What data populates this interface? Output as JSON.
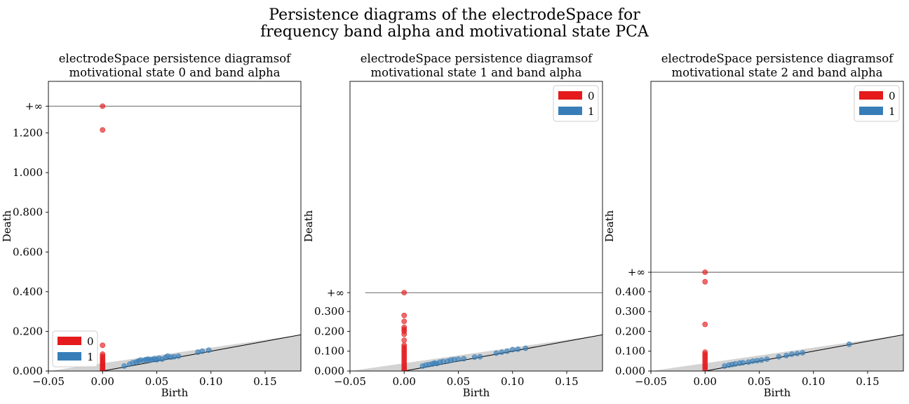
{
  "suptitle": {
    "line1": "Persistence diagrams of the electrodeSpace for",
    "line2": "frequency band alpha and motivational state PCA"
  },
  "colors": {
    "h0": "#e41a1c",
    "h1": "#377eb8",
    "diag_fill": "#d3d3d3"
  },
  "chart_data": [
    {
      "type": "scatter",
      "title_line1": "electrodeSpace persistence diagramsof",
      "title_line2": "motivational state 0 and band alpha",
      "xlabel": "Birth",
      "ylabel": "Death",
      "xlim": [
        -0.05,
        0.183
      ],
      "ylim": [
        0,
        1.46
      ],
      "xticks": [
        -0.05,
        0.0,
        0.05,
        0.1,
        0.15
      ],
      "xtick_labels": [
        "−0.05",
        "0.00",
        "0.05",
        "0.10",
        "0.15"
      ],
      "yticks": [
        0,
        0.2,
        0.4,
        0.6,
        0.8,
        1.0,
        1.2
      ],
      "ytick_labels": [
        "0.000",
        "0.200",
        "0.400",
        "0.600",
        "0.800",
        "1.000",
        "1.200"
      ],
      "inf_value": 1.335,
      "inf_label": "+∞",
      "inf_line_start": -0.05,
      "legend_loc": "lower left",
      "series": [
        {
          "name": "0",
          "points": [
            [
              0,
              1.335
            ],
            [
              0,
              1.215
            ],
            [
              0,
              0.13
            ],
            [
              0,
              0.085
            ],
            [
              0,
              0.075
            ],
            [
              0,
              0.066
            ],
            [
              0,
              0.058
            ],
            [
              0,
              0.05
            ],
            [
              0,
              0.043
            ],
            [
              0,
              0.036
            ],
            [
              0,
              0.03
            ],
            [
              0,
              0.024
            ],
            [
              0,
              0.018
            ],
            [
              0,
              0.012
            ],
            [
              0,
              0.006
            ],
            [
              0,
              0.002
            ]
          ]
        },
        {
          "name": "1",
          "points": [
            [
              0.02,
              0.025
            ],
            [
              0.025,
              0.035
            ],
            [
              0.028,
              0.042
            ],
            [
              0.031,
              0.045
            ],
            [
              0.033,
              0.05
            ],
            [
              0.035,
              0.055
            ],
            [
              0.038,
              0.052
            ],
            [
              0.04,
              0.058
            ],
            [
              0.042,
              0.06
            ],
            [
              0.044,
              0.055
            ],
            [
              0.046,
              0.058
            ],
            [
              0.048,
              0.062
            ],
            [
              0.05,
              0.057
            ],
            [
              0.052,
              0.065
            ],
            [
              0.055,
              0.06
            ],
            [
              0.058,
              0.068
            ],
            [
              0.06,
              0.075
            ],
            [
              0.063,
              0.07
            ],
            [
              0.066,
              0.072
            ],
            [
              0.07,
              0.075
            ],
            [
              0.088,
              0.095
            ],
            [
              0.092,
              0.1
            ],
            [
              0.098,
              0.105
            ]
          ]
        }
      ]
    },
    {
      "type": "scatter",
      "title_line1": "electrodeSpace persistence diagramsof",
      "title_line2": "motivational state 1 and band alpha",
      "xlabel": "Birth",
      "ylabel": "Death",
      "xlim": [
        -0.05,
        0.183
      ],
      "ylim": [
        0,
        1.46
      ],
      "xticks": [
        -0.05,
        0.0,
        0.05,
        0.1,
        0.15
      ],
      "xtick_labels": [
        "−0.05",
        "0.00",
        "0.05",
        "0.10",
        "0.15"
      ],
      "yticks": [
        0,
        0.1,
        0.2,
        0.3
      ],
      "ytick_labels": [
        "0.000",
        "0.100",
        "0.200",
        "0.300"
      ],
      "inf_value": 0.395,
      "inf_label": "+∞",
      "inf_line_start": -0.036,
      "legend_loc": "upper right",
      "series": [
        {
          "name": "0",
          "points": [
            [
              0,
              0.395
            ],
            [
              0,
              0.28
            ],
            [
              0,
              0.25
            ],
            [
              0,
              0.22
            ],
            [
              0,
              0.21
            ],
            [
              0,
              0.2
            ],
            [
              0,
              0.185
            ],
            [
              0,
              0.155
            ],
            [
              0,
              0.13
            ],
            [
              0,
              0.12
            ],
            [
              0,
              0.11
            ],
            [
              0,
              0.1
            ],
            [
              0,
              0.09
            ],
            [
              0,
              0.08
            ],
            [
              0,
              0.07
            ],
            [
              0,
              0.06
            ],
            [
              0,
              0.05
            ],
            [
              0,
              0.04
            ],
            [
              0,
              0.03
            ],
            [
              0,
              0.02
            ],
            [
              0,
              0.01
            ],
            [
              0,
              0.003
            ]
          ]
        },
        {
          "name": "1",
          "points": [
            [
              0.017,
              0.025
            ],
            [
              0.02,
              0.03
            ],
            [
              0.023,
              0.033
            ],
            [
              0.026,
              0.036
            ],
            [
              0.028,
              0.04
            ],
            [
              0.03,
              0.038
            ],
            [
              0.033,
              0.045
            ],
            [
              0.036,
              0.048
            ],
            [
              0.04,
              0.05
            ],
            [
              0.043,
              0.055
            ],
            [
              0.046,
              0.058
            ],
            [
              0.05,
              0.06
            ],
            [
              0.055,
              0.062
            ],
            [
              0.065,
              0.07
            ],
            [
              0.07,
              0.072
            ],
            [
              0.085,
              0.09
            ],
            [
              0.09,
              0.095
            ],
            [
              0.095,
              0.1
            ],
            [
              0.1,
              0.108
            ],
            [
              0.105,
              0.11
            ],
            [
              0.112,
              0.115
            ]
          ]
        }
      ]
    },
    {
      "type": "scatter",
      "title_line1": "electrodeSpace persistence diagramsof",
      "title_line2": "motivational state 2 and band alpha",
      "xlabel": "Birth",
      "ylabel": "Death",
      "xlim": [
        -0.05,
        0.183
      ],
      "ylim": [
        0,
        1.46
      ],
      "xticks": [
        -0.05,
        0.0,
        0.05,
        0.1,
        0.15
      ],
      "xtick_labels": [
        "−0.05",
        "0.00",
        "0.05",
        "0.10",
        "0.15"
      ],
      "yticks": [
        0,
        0.1,
        0.2,
        0.3,
        0.4
      ],
      "ytick_labels": [
        "0.000",
        "0.100",
        "0.200",
        "0.300",
        "0.400"
      ],
      "inf_value": 0.498,
      "inf_label": "+∞",
      "inf_line_start": -0.05,
      "legend_loc": "upper right",
      "series": [
        {
          "name": "0",
          "points": [
            [
              0,
              0.498
            ],
            [
              0,
              0.45
            ],
            [
              0,
              0.235
            ],
            [
              0,
              0.095
            ],
            [
              0,
              0.085
            ],
            [
              0,
              0.075
            ],
            [
              0,
              0.065
            ],
            [
              0,
              0.055
            ],
            [
              0,
              0.045
            ],
            [
              0,
              0.035
            ],
            [
              0,
              0.025
            ],
            [
              0,
              0.015
            ],
            [
              0,
              0.005
            ]
          ]
        },
        {
          "name": "1",
          "points": [
            [
              0.018,
              0.025
            ],
            [
              0.022,
              0.03
            ],
            [
              0.025,
              0.033
            ],
            [
              0.028,
              0.036
            ],
            [
              0.032,
              0.04
            ],
            [
              0.035,
              0.042
            ],
            [
              0.04,
              0.045
            ],
            [
              0.044,
              0.05
            ],
            [
              0.048,
              0.052
            ],
            [
              0.052,
              0.055
            ],
            [
              0.057,
              0.06
            ],
            [
              0.068,
              0.072
            ],
            [
              0.075,
              0.078
            ],
            [
              0.08,
              0.085
            ],
            [
              0.085,
              0.088
            ],
            [
              0.09,
              0.092
            ],
            [
              0.133,
              0.135
            ]
          ]
        }
      ]
    }
  ]
}
